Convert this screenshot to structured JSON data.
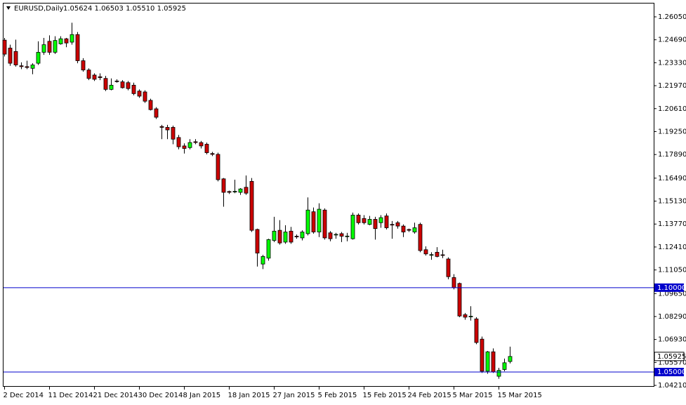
{
  "chart_data": {
    "type": "candlestick",
    "subtitle": "1.05624 1.06503 1.05510 1.05925",
    "categories": [
      "2 Dec 2014",
      null,
      null,
      null,
      null,
      null,
      null,
      null,
      "11 Dec 2014",
      null,
      null,
      null,
      null,
      null,
      null,
      null,
      "21 Dec 2014",
      null,
      null,
      null,
      null,
      null,
      null,
      null,
      "30 Dec 2014",
      null,
      null,
      null,
      null,
      null,
      null,
      null,
      "8 Jan 2015",
      null,
      null,
      null,
      null,
      null,
      null,
      null,
      "18 Jan 2015",
      null,
      null,
      null,
      null,
      null,
      null,
      null,
      "27 Jan 2015",
      null,
      null,
      null,
      null,
      null,
      null,
      null,
      "5 Feb 2015",
      null,
      null,
      null,
      null,
      null,
      null,
      null,
      "15 Feb 2015",
      null,
      null,
      null,
      null,
      null,
      null,
      null,
      "24 Feb 2015",
      null,
      null,
      null,
      null,
      null,
      null,
      null,
      "5 Mar 2015",
      null,
      null,
      null,
      null,
      null,
      null,
      null,
      "15 Mar 2015",
      null,
      null
    ],
    "series": [
      {
        "name": "EURUSD,Daily",
        "up_color": "#00ff00",
        "down_color": "#cc0000",
        "open": [
          1.2467,
          1.242,
          1.24,
          1.2315,
          1.231,
          1.23,
          1.233,
          1.2395,
          1.246,
          1.2395,
          1.2445,
          1.2475,
          1.2455,
          1.25,
          1.2345,
          1.229,
          1.226,
          1.225,
          1.224,
          1.2175,
          1.2225,
          1.222,
          1.2215,
          1.22,
          1.2165,
          1.216,
          1.211,
          1.206,
          1.1955,
          1.195,
          1.195,
          1.189,
          1.184,
          1.183,
          1.1865,
          1.186,
          1.185,
          1.1795,
          1.179,
          1.1645,
          1.157,
          1.157,
          1.1565,
          1.1595,
          1.163,
          1.1345,
          1.114,
          1.1175,
          1.128,
          1.134,
          1.127,
          1.1335,
          1.1305,
          1.1295,
          1.132,
          1.145,
          1.133,
          1.146,
          1.1325,
          1.1315,
          1.132,
          1.1305,
          1.129,
          1.143,
          1.141,
          1.1375,
          1.1405,
          1.1385,
          1.1425,
          1.1375,
          1.1385,
          1.1365,
          1.1345,
          1.133,
          1.1375,
          1.1225,
          1.1195,
          1.121,
          1.1195,
          1.117,
          1.106,
          1.1025,
          1.084,
          1.083,
          1.0815,
          1.0695,
          1.0505,
          1.062,
          1.0475,
          1.0515,
          1.05624
        ],
        "high": [
          1.248,
          1.244,
          1.247,
          1.2335,
          1.2345,
          1.233,
          1.246,
          1.248,
          1.2495,
          1.249,
          1.249,
          1.248,
          1.257,
          1.2515,
          1.236,
          1.23,
          1.227,
          1.227,
          1.2255,
          1.224,
          1.2235,
          1.223,
          1.2225,
          1.2215,
          1.2175,
          1.217,
          1.212,
          1.207,
          1.1965,
          1.1965,
          1.196,
          1.1905,
          1.1855,
          1.188,
          1.188,
          1.187,
          1.186,
          1.1805,
          1.18,
          1.165,
          1.1575,
          1.164,
          1.159,
          1.1665,
          1.165,
          1.135,
          1.1195,
          1.129,
          1.142,
          1.14,
          1.137,
          1.136,
          1.1315,
          1.134,
          1.1535,
          1.1475,
          1.15,
          1.147,
          1.1335,
          1.1325,
          1.133,
          1.1325,
          1.1445,
          1.144,
          1.143,
          1.1425,
          1.142,
          1.143,
          1.144,
          1.1395,
          1.1395,
          1.1375,
          1.135,
          1.1385,
          1.1385,
          1.1245,
          1.121,
          1.124,
          1.1225,
          1.118,
          1.108,
          1.103,
          1.085,
          1.089,
          1.0825,
          1.071,
          1.0625,
          1.064,
          1.0525,
          1.058,
          1.06503
        ],
        "low": [
          1.237,
          1.2315,
          1.231,
          1.2295,
          1.2295,
          1.2265,
          1.232,
          1.238,
          1.238,
          1.2385,
          1.244,
          1.2425,
          1.244,
          1.233,
          1.228,
          1.223,
          1.2225,
          1.223,
          1.2165,
          1.217,
          1.2215,
          1.218,
          1.217,
          1.214,
          1.2125,
          1.2095,
          1.205,
          1.2,
          1.188,
          1.188,
          1.185,
          1.182,
          1.1795,
          1.182,
          1.185,
          1.1825,
          1.179,
          1.178,
          1.163,
          1.148,
          1.1555,
          1.156,
          1.155,
          1.155,
          1.133,
          1.1125,
          1.111,
          1.116,
          1.127,
          1.1255,
          1.126,
          1.126,
          1.129,
          1.128,
          1.131,
          1.132,
          1.13,
          1.1285,
          1.1275,
          1.129,
          1.127,
          1.1275,
          1.1285,
          1.1375,
          1.1375,
          1.137,
          1.1285,
          1.1355,
          1.1345,
          1.129,
          1.135,
          1.13,
          1.133,
          1.132,
          1.121,
          1.119,
          1.1165,
          1.118,
          1.1175,
          1.105,
          1.099,
          1.0825,
          1.081,
          1.0805,
          1.0665,
          1.0495,
          1.049,
          1.0495,
          1.046,
          1.0505,
          1.0551
        ],
        "close": [
          1.2384,
          1.233,
          1.232,
          1.231,
          1.2305,
          1.232,
          1.2395,
          1.244,
          1.2395,
          1.2465,
          1.2475,
          1.245,
          1.25,
          1.2345,
          1.229,
          1.224,
          1.2235,
          1.2245,
          1.2175,
          1.22,
          1.2224,
          1.2185,
          1.218,
          1.215,
          1.2135,
          1.2105,
          1.2055,
          1.201,
          1.195,
          1.1935,
          1.188,
          1.1835,
          1.1825,
          1.186,
          1.186,
          1.184,
          1.18,
          1.179,
          1.164,
          1.1565,
          1.1565,
          1.1571,
          1.1585,
          1.156,
          1.134,
          1.1205,
          1.1185,
          1.1285,
          1.1335,
          1.1265,
          1.133,
          1.127,
          1.1304,
          1.133,
          1.146,
          1.133,
          1.1465,
          1.1295,
          1.129,
          1.1316,
          1.1305,
          1.1306,
          1.143,
          1.1385,
          1.1385,
          1.1405,
          1.135,
          1.1415,
          1.1355,
          1.1374,
          1.1365,
          1.133,
          1.134,
          1.1355,
          1.122,
          1.12,
          1.1196,
          1.1185,
          1.1194,
          1.1065,
          1.1,
          1.0832,
          1.0825,
          1.0831,
          1.0675,
          1.0505,
          1.062,
          1.05,
          1.051,
          1.0555,
          1.05925
        ]
      }
    ],
    "ylim": [
      1.0417,
      1.2684
    ],
    "yticks": [
      {
        "value": 1.2605,
        "label": "1.26050"
      },
      {
        "value": 1.2469,
        "label": "1.24690"
      },
      {
        "value": 1.2333,
        "label": "1.23330"
      },
      {
        "value": 1.2197,
        "label": "1.21970"
      },
      {
        "value": 1.2061,
        "label": "1.20610"
      },
      {
        "value": 1.1925,
        "label": "1.19250"
      },
      {
        "value": 1.1789,
        "label": "1.17890"
      },
      {
        "value": 1.1649,
        "label": "1.16490"
      },
      {
        "value": 1.1513,
        "label": "1.15130"
      },
      {
        "value": 1.1377,
        "label": "1.13770"
      },
      {
        "value": 1.1241,
        "label": "1.12410"
      },
      {
        "value": 1.1105,
        "label": "1.11050"
      },
      {
        "value": 1.0965,
        "label": "1.09650"
      },
      {
        "value": 1.0829,
        "label": "1.08290"
      },
      {
        "value": 1.0693,
        "label": "1.06930"
      },
      {
        "value": 1.0557,
        "label": "1.05570"
      },
      {
        "value": 1.0421,
        "label": "1.04210"
      }
    ],
    "hlines": [
      {
        "value": 1.1,
        "label": "1.10000",
        "color": "#0000cc"
      },
      {
        "value": 1.05,
        "label": "1.05000",
        "color": "#0000cc"
      }
    ],
    "price_marker": {
      "value": 1.05925,
      "label": "1.05925"
    },
    "grid": false
  }
}
